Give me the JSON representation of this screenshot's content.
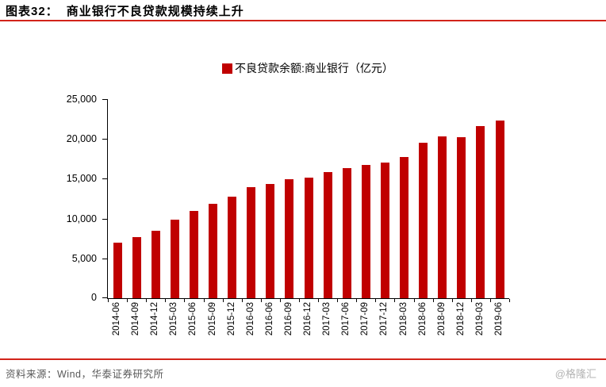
{
  "header": {
    "figure_label": "图表32：",
    "title": "商业银行不良贷款规模持续上升"
  },
  "chart_data": {
    "type": "bar",
    "title": "商业银行不良贷款规模持续上升",
    "legend": "不良贷款余额:商业银行（亿元）",
    "legend_position": "top-center",
    "categories": [
      "2014-06",
      "2014-09",
      "2014-12",
      "2015-03",
      "2015-06",
      "2015-09",
      "2015-12",
      "2016-03",
      "2016-06",
      "2016-09",
      "2016-12",
      "2017-03",
      "2017-06",
      "2017-09",
      "2017-12",
      "2018-03",
      "2018-06",
      "2018-09",
      "2018-12",
      "2019-03",
      "2019-06"
    ],
    "values": [
      6944,
      7669,
      8426,
      9825,
      10919,
      11863,
      12744,
      13921,
      14373,
      14939,
      15123,
      15795,
      16358,
      16704,
      17057,
      17742,
      19571,
      20322,
      20254,
      21571,
      22352
    ],
    "xlabel": "",
    "ylabel": "",
    "ylim": [
      0,
      25000
    ],
    "ytick_interval": 5000,
    "ytick_labels": [
      "0",
      "5,000",
      "10,000",
      "15,000",
      "20,000",
      "25,000"
    ],
    "grid": false,
    "bar_color": "#C00000"
  },
  "colors": {
    "bar_red": "#C00000",
    "rule_red": "#D2231A",
    "axis_black": "#000000",
    "source_gray": "#595959",
    "watermark_gray": "#B3B3B3"
  },
  "footer": {
    "source": "资料来源：Wind，华泰证券研究所",
    "watermark": "@格隆汇"
  }
}
